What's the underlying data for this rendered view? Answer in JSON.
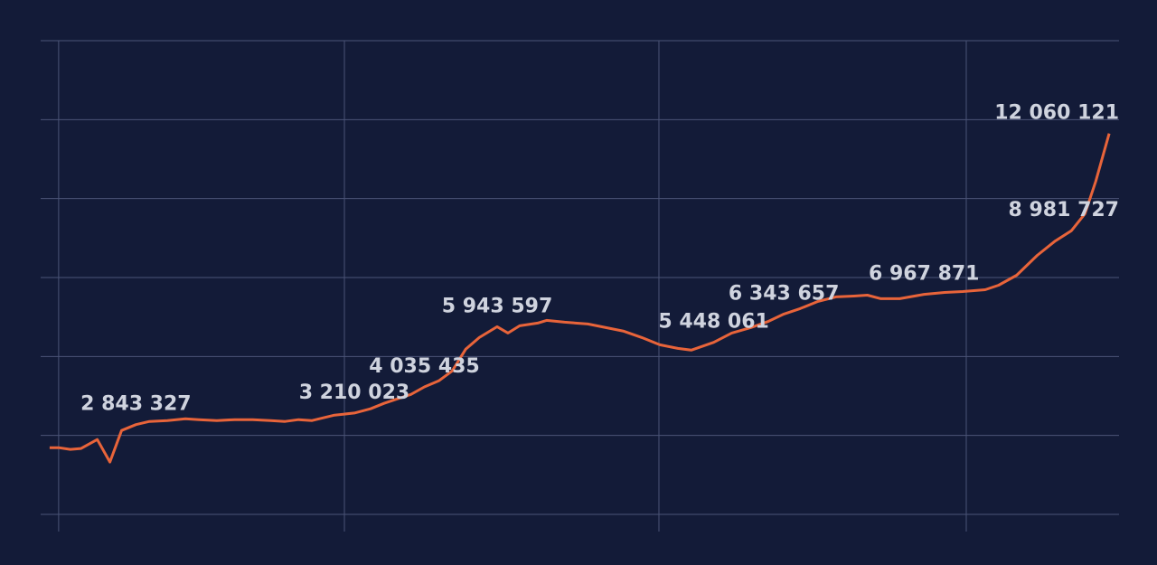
{
  "chart_data": {
    "type": "line",
    "x": [
      1.0,
      2.0,
      3.3,
      4.5,
      6.3,
      7.7,
      9.0,
      10.6,
      12.1,
      14.1,
      16.1,
      17.6,
      19.6,
      21.6,
      23.6,
      25.6,
      27.2,
      28.7,
      30.2,
      32.7,
      34.9,
      36.7,
      38.2,
      39.7,
      41.2,
      42.7,
      44.3,
      45.8,
      47.3,
      48.8,
      50.8,
      52.0,
      53.3,
      55.3,
      56.3,
      58.3,
      60.9,
      62.9,
      64.9,
      66.9,
      68.9,
      70.9,
      72.4,
      74.9,
      76.9,
      79.0,
      81.0,
      82.7,
      84.5,
      86.5,
      88.5,
      90.5,
      92.0,
      93.5,
      95.6,
      98.3,
      100.6,
      102.6,
      105.1,
      106.6,
      108.6,
      110.9,
      112.9,
      114.7,
      116.2,
      117.4,
      118.9
    ],
    "series": [
      {
        "color": "#e8643a",
        "values": [
          2114000,
          2114000,
          2057000,
          2086000,
          2371000,
          1657000,
          2657000,
          2843327,
          2943000,
          2971000,
          3029000,
          3000000,
          2971000,
          3000000,
          3000000,
          2971000,
          2943000,
          3000000,
          2971000,
          3143000,
          3210023,
          3343000,
          3514000,
          3657000,
          3800000,
          4035435,
          4229000,
          4543000,
          5229000,
          5600000,
          5943597,
          5743000,
          5971000,
          6057000,
          6143000,
          6086000,
          6029000,
          5914000,
          5800000,
          5600000,
          5371000,
          5257000,
          5200000,
          5448061,
          5743000,
          5914000,
          6114000,
          6343657,
          6514000,
          6743000,
          6886000,
          6914000,
          6943000,
          6829000,
          6829000,
          6967871,
          7029000,
          7057000,
          7114000,
          7257000,
          7571000,
          8200000,
          8657000,
          8981727,
          9514000,
          10543000,
          12060121
        ],
        "value_labels": [
          null,
          null,
          null,
          null,
          null,
          null,
          null,
          "2 843 327",
          null,
          null,
          null,
          null,
          null,
          null,
          null,
          null,
          null,
          null,
          null,
          null,
          "3 210 023",
          null,
          null,
          null,
          null,
          "4 035 435",
          null,
          null,
          null,
          null,
          "5 943 597",
          null,
          null,
          null,
          null,
          null,
          null,
          null,
          null,
          null,
          null,
          null,
          null,
          "5 448 061",
          null,
          null,
          null,
          "6 343 657",
          null,
          null,
          null,
          null,
          null,
          null,
          null,
          "6 967 871",
          null,
          null,
          null,
          null,
          null,
          null,
          null,
          "8 981 727",
          null,
          null,
          "12 060 121"
        ]
      }
    ],
    "xlim": [
      0,
      120
    ],
    "xticks": [
      2.0,
      33.8,
      68.8,
      103.0
    ],
    "ylim": [
      0,
      15000000
    ],
    "yticks": [
      0,
      2500000,
      5000000,
      7500000,
      10000000,
      12500000,
      15000000
    ],
    "grid": true
  }
}
